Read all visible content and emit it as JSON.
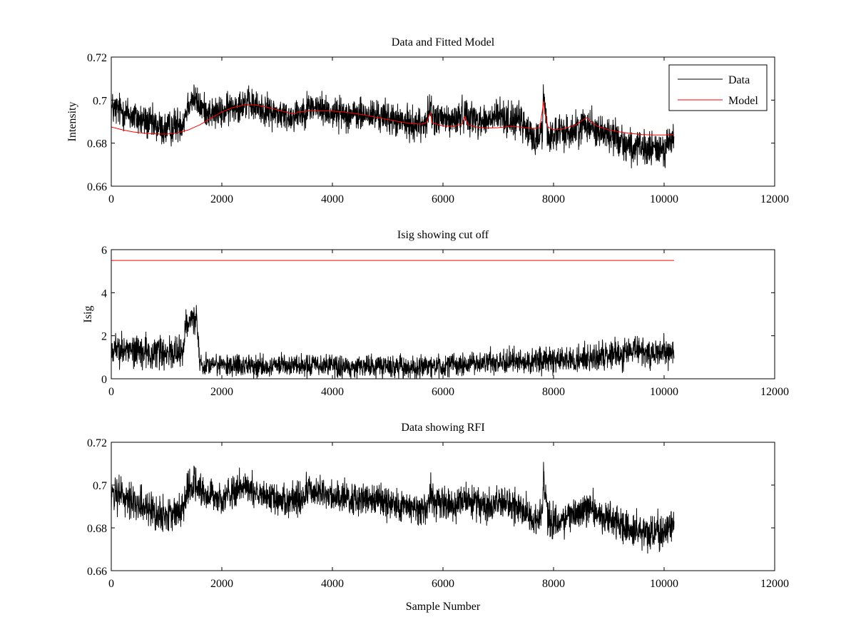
{
  "figure": {
    "xlabel": "Sample Number"
  },
  "chart_data": [
    {
      "type": "line",
      "title": "Data and Fitted Model",
      "xlabel": "",
      "ylabel": "Intensity",
      "xlim": [
        0,
        12000
      ],
      "ylim": [
        0.66,
        0.72
      ],
      "xticks": [
        "0",
        "2000",
        "4000",
        "6000",
        "8000",
        "10000",
        "12000"
      ],
      "yticks": [
        "0.66",
        "0.68",
        "0.7",
        "0.72"
      ],
      "xtick_values": [
        0,
        2000,
        4000,
        6000,
        8000,
        10000,
        12000
      ],
      "ytick_values": [
        0.66,
        0.68,
        0.7,
        0.72
      ],
      "grid": false,
      "legend": "top-right",
      "series": [
        {
          "name": "Data",
          "color": "#000000",
          "style": "noisy-band",
          "x_range": [
            0,
            10180
          ],
          "center": {
            "x": [
              0,
              200,
              500,
              800,
              1000,
              1200,
              1300,
              1400,
              1500,
              1600,
              1800,
              2000,
              2200,
              2400,
              2600,
              2800,
              3000,
              3200,
              3400,
              3600,
              3800,
              4000,
              4200,
              4400,
              4600,
              4800,
              5000,
              5200,
              5400,
              5600,
              5700,
              5780,
              5800,
              6000,
              6200,
              6400,
              6600,
              6800,
              7000,
              7200,
              7400,
              7600,
              7700,
              7800,
              7820,
              7900,
              8000,
              8200,
              8400,
              8600,
              8800,
              9000,
              9200,
              9400,
              9600,
              9800,
              10000,
              10180
            ],
            "y": [
              0.696,
              0.695,
              0.691,
              0.688,
              0.686,
              0.689,
              0.69,
              0.699,
              0.701,
              0.697,
              0.694,
              0.694,
              0.697,
              0.699,
              0.697,
              0.695,
              0.694,
              0.692,
              0.694,
              0.697,
              0.696,
              0.694,
              0.694,
              0.693,
              0.693,
              0.693,
              0.692,
              0.69,
              0.689,
              0.689,
              0.69,
              0.698,
              0.692,
              0.691,
              0.69,
              0.694,
              0.691,
              0.69,
              0.693,
              0.691,
              0.69,
              0.683,
              0.682,
              0.687,
              0.703,
              0.683,
              0.684,
              0.685,
              0.686,
              0.69,
              0.686,
              0.684,
              0.682,
              0.678,
              0.677,
              0.677,
              0.678,
              0.682
            ]
          },
          "spread": {
            "x": [
              0,
              1300,
              1400,
              1600,
              2000,
              5000,
              7500,
              8000,
              10180
            ],
            "y": [
              0.012,
              0.012,
              0.011,
              0.01,
              0.011,
              0.011,
              0.012,
              0.012,
              0.012
            ]
          }
        },
        {
          "name": "Model",
          "color": "#ff0000",
          "style": "line",
          "x": [
            0,
            200,
            400,
            600,
            800,
            1000,
            1200,
            1400,
            1600,
            1800,
            2000,
            2200,
            2400,
            2600,
            2800,
            3000,
            3200,
            3300,
            3400,
            3600,
            3800,
            4000,
            4200,
            4400,
            4600,
            4800,
            5000,
            5200,
            5400,
            5600,
            5700,
            5760,
            5780,
            5800,
            6000,
            6200,
            6350,
            6400,
            6450,
            6600,
            6800,
            7000,
            7200,
            7400,
            7600,
            7750,
            7800,
            7820,
            7840,
            7900,
            8000,
            8200,
            8400,
            8560,
            8600,
            8700,
            8800,
            9000,
            9200,
            9400,
            9600,
            9800,
            10000,
            10180
          ],
          "y": [
            0.6875,
            0.6862,
            0.6852,
            0.6846,
            0.6843,
            0.6842,
            0.6848,
            0.6862,
            0.6885,
            0.6915,
            0.6945,
            0.6965,
            0.6978,
            0.6978,
            0.6968,
            0.6955,
            0.6942,
            0.6936,
            0.6945,
            0.695,
            0.695,
            0.6949,
            0.6945,
            0.6938,
            0.693,
            0.692,
            0.691,
            0.69,
            0.6892,
            0.6888,
            0.6895,
            0.6935,
            0.694,
            0.6895,
            0.688,
            0.6878,
            0.689,
            0.6925,
            0.6885,
            0.6875,
            0.687,
            0.6872,
            0.6878,
            0.6875,
            0.6868,
            0.687,
            0.6955,
            0.6995,
            0.6945,
            0.6875,
            0.6862,
            0.6868,
            0.6885,
            0.6912,
            0.6918,
            0.6895,
            0.6878,
            0.6862,
            0.6852,
            0.6845,
            0.684,
            0.6838,
            0.6838,
            0.684
          ]
        }
      ]
    },
    {
      "type": "line",
      "title": "Isig showing cut off",
      "xlabel": "",
      "ylabel": "Isig",
      "xlim": [
        0,
        12000
      ],
      "ylim": [
        0,
        6
      ],
      "xticks": [
        "0",
        "2000",
        "4000",
        "6000",
        "8000",
        "10000",
        "12000"
      ],
      "yticks": [
        "0",
        "2",
        "4",
        "6"
      ],
      "xtick_values": [
        0,
        2000,
        4000,
        6000,
        8000,
        10000,
        12000
      ],
      "ytick_values": [
        0,
        2,
        4,
        6
      ],
      "grid": false,
      "series": [
        {
          "color": "#000000",
          "style": "noisy-band",
          "floor": 0,
          "x_range": [
            0,
            10180
          ],
          "center": {
            "x": [
              0,
              500,
              1000,
              1300,
              1350,
              1450,
              1550,
              1600,
              2000,
              3000,
              4000,
              5000,
              6000,
              7000,
              8000,
              8500,
              9000,
              9500,
              10000,
              10180
            ],
            "y": [
              1.4,
              1.3,
              1.2,
              1.3,
              2.6,
              2.8,
              2.6,
              0.7,
              0.6,
              0.6,
              0.6,
              0.55,
              0.6,
              0.8,
              0.85,
              0.9,
              1.1,
              1.25,
              1.25,
              1.2
            ]
          },
          "spread": {
            "x": [
              0,
              1300,
              1350,
              1550,
              1600,
              6500,
              8500,
              10180
            ],
            "y": [
              1.1,
              1.1,
              0.9,
              0.9,
              0.75,
              0.8,
              0.95,
              1.05
            ]
          }
        },
        {
          "color": "#ff0000",
          "style": "line",
          "x": [
            0,
            10180
          ],
          "y": [
            5.5,
            5.5
          ]
        }
      ]
    },
    {
      "type": "line",
      "title": "Data showing RFI",
      "xlabel": "Sample Number",
      "ylabel": "",
      "xlim": [
        0,
        12000
      ],
      "ylim": [
        0.66,
        0.72
      ],
      "xticks": [
        "0",
        "2000",
        "4000",
        "6000",
        "8000",
        "10000",
        "12000"
      ],
      "yticks": [
        "0.66",
        "0.68",
        "0.7",
        "0.72"
      ],
      "xtick_values": [
        0,
        2000,
        4000,
        6000,
        8000,
        10000,
        12000
      ],
      "ytick_values": [
        0.66,
        0.68,
        0.7,
        0.72
      ],
      "grid": false,
      "series": [
        {
          "color": "#000000",
          "style": "noisy-band",
          "x_range": [
            0,
            10180
          ],
          "center": {
            "x": [
              0,
              200,
              500,
              800,
              1000,
              1200,
              1300,
              1400,
              1500,
              1600,
              1800,
              2000,
              2200,
              2400,
              2600,
              2800,
              3000,
              3200,
              3400,
              3600,
              3800,
              4000,
              4200,
              4400,
              4600,
              4800,
              5000,
              5200,
              5400,
              5600,
              5700,
              5780,
              5800,
              6000,
              6200,
              6400,
              6600,
              6800,
              7000,
              7200,
              7400,
              7600,
              7700,
              7800,
              7820,
              7900,
              8000,
              8200,
              8400,
              8600,
              8800,
              9000,
              9200,
              9400,
              9600,
              9800,
              10000,
              10180
            ],
            "y": [
              0.696,
              0.695,
              0.691,
              0.688,
              0.686,
              0.689,
              0.69,
              0.699,
              0.701,
              0.697,
              0.694,
              0.694,
              0.697,
              0.699,
              0.697,
              0.695,
              0.694,
              0.692,
              0.694,
              0.697,
              0.696,
              0.694,
              0.694,
              0.693,
              0.693,
              0.693,
              0.692,
              0.69,
              0.689,
              0.689,
              0.69,
              0.698,
              0.692,
              0.691,
              0.69,
              0.694,
              0.691,
              0.69,
              0.693,
              0.691,
              0.69,
              0.683,
              0.682,
              0.687,
              0.703,
              0.683,
              0.684,
              0.685,
              0.686,
              0.69,
              0.686,
              0.684,
              0.682,
              0.678,
              0.677,
              0.677,
              0.678,
              0.682
            ]
          },
          "spread": {
            "x": [
              0,
              1300,
              1400,
              1600,
              2000,
              5000,
              7500,
              8000,
              10180
            ],
            "y": [
              0.012,
              0.012,
              0.011,
              0.01,
              0.011,
              0.011,
              0.012,
              0.012,
              0.012
            ]
          }
        }
      ]
    }
  ]
}
